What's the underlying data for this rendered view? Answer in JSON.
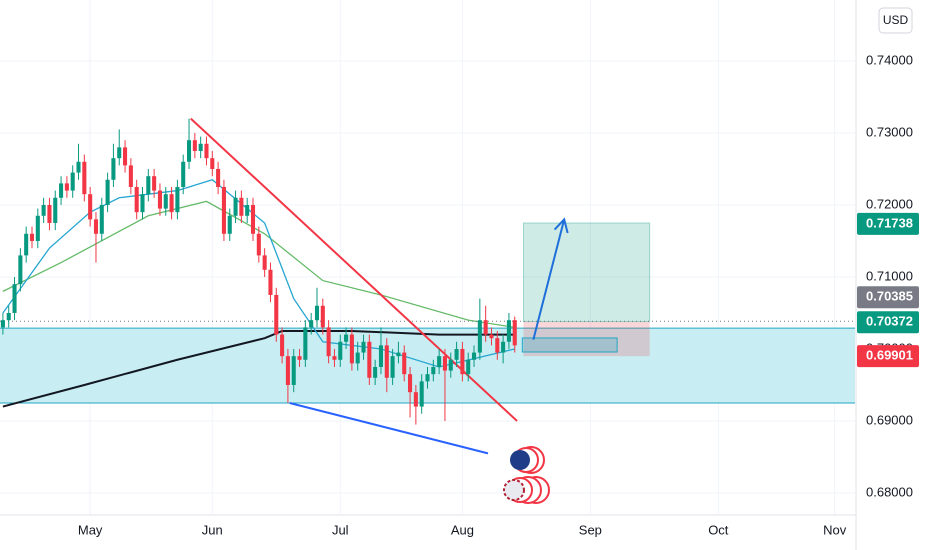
{
  "chart_data": {
    "type": "candlestick",
    "currency": "USD",
    "up_color": "#089981",
    "down_color": "#f23645",
    "grid": true,
    "xlim": [
      -0.5,
      146.5
    ],
    "xticks": [
      {
        "value": 15,
        "label": "May"
      },
      {
        "value": 36,
        "label": "Jun"
      },
      {
        "value": 58,
        "label": "Jul"
      },
      {
        "value": 79,
        "label": "Aug"
      },
      {
        "value": 101,
        "label": "Sep"
      },
      {
        "value": 123,
        "label": "Oct"
      },
      {
        "value": 143,
        "label": "Nov"
      }
    ],
    "ylim": [
      0.67694,
      0.74847
    ],
    "yticks": [
      {
        "value": 0.68,
        "label": "0.68000"
      },
      {
        "value": 0.69,
        "label": "0.69000"
      },
      {
        "value": 0.7,
        "label": "0.70000"
      },
      {
        "value": 0.71,
        "label": "0.71000"
      },
      {
        "value": 0.72,
        "label": "0.72000"
      },
      {
        "value": 0.73,
        "label": "0.73000"
      },
      {
        "value": 0.74,
        "label": "0.74000"
      }
    ],
    "x": [
      0,
      1,
      2,
      3,
      4,
      5,
      6,
      7,
      8,
      9,
      10,
      11,
      12,
      13,
      14,
      15,
      16,
      17,
      18,
      19,
      20,
      21,
      22,
      23,
      24,
      25,
      26,
      27,
      28,
      29,
      30,
      31,
      32,
      33,
      34,
      35,
      36,
      37,
      38,
      39,
      40,
      41,
      42,
      43,
      44,
      45,
      46,
      47,
      48,
      49,
      50,
      51,
      52,
      53,
      54,
      55,
      56,
      57,
      58,
      59,
      60,
      61,
      62,
      63,
      64,
      65,
      66,
      67,
      68,
      69,
      70,
      71,
      72,
      73,
      74,
      75,
      76,
      77,
      78,
      79,
      80,
      81,
      82,
      83,
      84,
      85,
      86,
      87,
      88
    ],
    "open": [
      0.703,
      0.704,
      0.705,
      0.709,
      0.713,
      0.716,
      0.715,
      0.7185,
      0.72,
      0.7175,
      0.721,
      0.723,
      0.722,
      0.7245,
      0.726,
      0.7215,
      0.718,
      0.716,
      0.72,
      0.7235,
      0.7265,
      0.728,
      0.7255,
      0.7225,
      0.719,
      0.7215,
      0.724,
      0.722,
      0.7195,
      0.7215,
      0.719,
      0.7225,
      0.726,
      0.729,
      0.7275,
      0.7285,
      0.7265,
      0.725,
      0.7225,
      0.716,
      0.7185,
      0.721,
      0.7185,
      0.72,
      0.716,
      0.713,
      0.711,
      0.7075,
      0.702,
      0.699,
      0.695,
      0.699,
      0.6985,
      0.703,
      0.704,
      0.706,
      0.703,
      0.699,
      0.6985,
      0.701,
      0.702,
      0.698,
      0.6995,
      0.701,
      0.696,
      0.6975,
      0.7005,
      0.696,
      0.699,
      0.6995,
      0.6965,
      0.694,
      0.692,
      0.6955,
      0.6965,
      0.6975,
      0.699,
      0.697,
      0.6985,
      0.7,
      0.6965,
      0.6985,
      0.6995,
      0.704,
      0.702,
      0.7015,
      0.6995,
      0.701,
      0.704
    ],
    "high": [
      0.705,
      0.706,
      0.71,
      0.714,
      0.717,
      0.717,
      0.7195,
      0.721,
      0.721,
      0.722,
      0.724,
      0.724,
      0.7255,
      0.7285,
      0.727,
      0.7225,
      0.719,
      0.721,
      0.7245,
      0.7285,
      0.7305,
      0.729,
      0.7265,
      0.7235,
      0.7225,
      0.725,
      0.725,
      0.723,
      0.7225,
      0.7225,
      0.7235,
      0.727,
      0.732,
      0.73,
      0.7295,
      0.7295,
      0.7275,
      0.726,
      0.7235,
      0.7195,
      0.722,
      0.722,
      0.721,
      0.721,
      0.717,
      0.714,
      0.712,
      0.7085,
      0.703,
      0.7,
      0.7,
      0.7,
      0.704,
      0.705,
      0.7085,
      0.707,
      0.704,
      0.7,
      0.702,
      0.703,
      0.703,
      0.701,
      0.702,
      0.702,
      0.6985,
      0.703,
      0.7015,
      0.7,
      0.701,
      0.7005,
      0.6975,
      0.695,
      0.6965,
      0.6975,
      0.6985,
      0.7,
      0.7,
      0.6995,
      0.701,
      0.701,
      0.6995,
      0.7005,
      0.707,
      0.706,
      0.703,
      0.7025,
      0.702,
      0.705,
      0.7045
    ],
    "low": [
      0.702,
      0.703,
      0.704,
      0.708,
      0.712,
      0.714,
      0.714,
      0.7175,
      0.7165,
      0.7165,
      0.72,
      0.721,
      0.721,
      0.7235,
      0.7205,
      0.717,
      0.712,
      0.715,
      0.719,
      0.7225,
      0.7255,
      0.7245,
      0.7215,
      0.718,
      0.718,
      0.7205,
      0.721,
      0.7185,
      0.7185,
      0.718,
      0.718,
      0.7215,
      0.725,
      0.7265,
      0.7265,
      0.7255,
      0.724,
      0.7215,
      0.715,
      0.715,
      0.7175,
      0.7175,
      0.7175,
      0.715,
      0.712,
      0.71,
      0.7065,
      0.701,
      0.698,
      0.6925,
      0.694,
      0.6975,
      0.6975,
      0.702,
      0.703,
      0.702,
      0.698,
      0.6975,
      0.6975,
      0.7,
      0.697,
      0.697,
      0.6985,
      0.695,
      0.695,
      0.6965,
      0.694,
      0.695,
      0.698,
      0.6955,
      0.6905,
      0.6895,
      0.691,
      0.6945,
      0.6955,
      0.6965,
      0.69,
      0.696,
      0.6975,
      0.6955,
      0.6955,
      0.6975,
      0.6985,
      0.701,
      0.7005,
      0.6985,
      0.698,
      0.7,
      0.6995
    ],
    "close": [
      0.704,
      0.705,
      0.709,
      0.713,
      0.716,
      0.715,
      0.7185,
      0.72,
      0.7175,
      0.721,
      0.723,
      0.722,
      0.7245,
      0.726,
      0.7215,
      0.718,
      0.716,
      0.72,
      0.7235,
      0.7265,
      0.728,
      0.7255,
      0.7225,
      0.719,
      0.7215,
      0.724,
      0.722,
      0.7195,
      0.7215,
      0.719,
      0.7225,
      0.726,
      0.729,
      0.7275,
      0.7285,
      0.7265,
      0.725,
      0.7225,
      0.716,
      0.7185,
      0.721,
      0.7185,
      0.72,
      0.716,
      0.713,
      0.711,
      0.7075,
      0.702,
      0.699,
      0.695,
      0.699,
      0.6985,
      0.703,
      0.704,
      0.706,
      0.703,
      0.699,
      0.6985,
      0.701,
      0.702,
      0.698,
      0.6995,
      0.701,
      0.696,
      0.6975,
      0.7005,
      0.696,
      0.699,
      0.6995,
      0.6965,
      0.694,
      0.692,
      0.6955,
      0.6965,
      0.6975,
      0.699,
      0.697,
      0.6985,
      0.7,
      0.6965,
      0.6985,
      0.6995,
      0.704,
      0.702,
      0.7015,
      0.6995,
      0.701,
      0.704,
      0.7005
    ],
    "zone": {
      "y": [
        0.7029,
        0.6925
      ],
      "fill": "#c8eef3",
      "line_color": "#22a6c4"
    },
    "lines": [
      {
        "color": "#131722",
        "width": 2,
        "points": [
          [
            0,
            0.692
          ],
          [
            14,
            0.695
          ],
          [
            30,
            0.6985
          ],
          [
            45,
            0.7015
          ],
          [
            48,
            0.7025
          ],
          [
            60,
            0.7025
          ],
          [
            75,
            0.702
          ],
          [
            88,
            0.702
          ]
        ]
      },
      {
        "color": "#66bb6a",
        "width": 1.3,
        "points": [
          [
            0,
            0.708
          ],
          [
            10,
            0.712
          ],
          [
            25,
            0.7185
          ],
          [
            35,
            0.7205
          ],
          [
            45,
            0.716
          ],
          [
            55,
            0.7095
          ],
          [
            65,
            0.7075
          ],
          [
            80,
            0.704
          ],
          [
            88,
            0.703
          ]
        ]
      },
      {
        "color": "#26a6d1",
        "width": 1.3,
        "points": [
          [
            0,
            0.705
          ],
          [
            8,
            0.714
          ],
          [
            15,
            0.719
          ],
          [
            20,
            0.721
          ],
          [
            30,
            0.722
          ],
          [
            36,
            0.7235
          ],
          [
            45,
            0.7175
          ],
          [
            50,
            0.707
          ],
          [
            55,
            0.701
          ],
          [
            65,
            0.7
          ],
          [
            75,
            0.6975
          ],
          [
            88,
            0.7
          ]
        ]
      },
      {
        "color": "#f23645",
        "width": 2,
        "points": [
          [
            32.3,
            0.732
          ],
          [
            88.4,
            0.69
          ]
        ]
      },
      {
        "color": "#2962ff",
        "width": 2,
        "points": [
          [
            49.3,
            0.6925
          ],
          [
            83.4,
            0.6855
          ]
        ]
      }
    ],
    "arrow": {
      "color": "#1e6fd9",
      "points": [
        [
          91.2,
          0.7013
        ],
        [
          96.5,
          0.718
        ]
      ]
    },
    "position": {
      "x": [
        89.5,
        111.2
      ],
      "target": 0.7175,
      "entry": 0.7038,
      "stop": 0.699,
      "order_box": {
        "x": [
          89.3,
          105.6
        ],
        "y": [
          0.70153,
          0.69958
        ]
      }
    },
    "price_labels": [
      {
        "value": 0.71738,
        "color": "#089981"
      },
      {
        "value": 0.70372,
        "color": "#089981"
      },
      {
        "value": 0.70385,
        "color": "#787b86"
      },
      {
        "value": 0.69901,
        "color": "#f23645"
      }
    ]
  }
}
